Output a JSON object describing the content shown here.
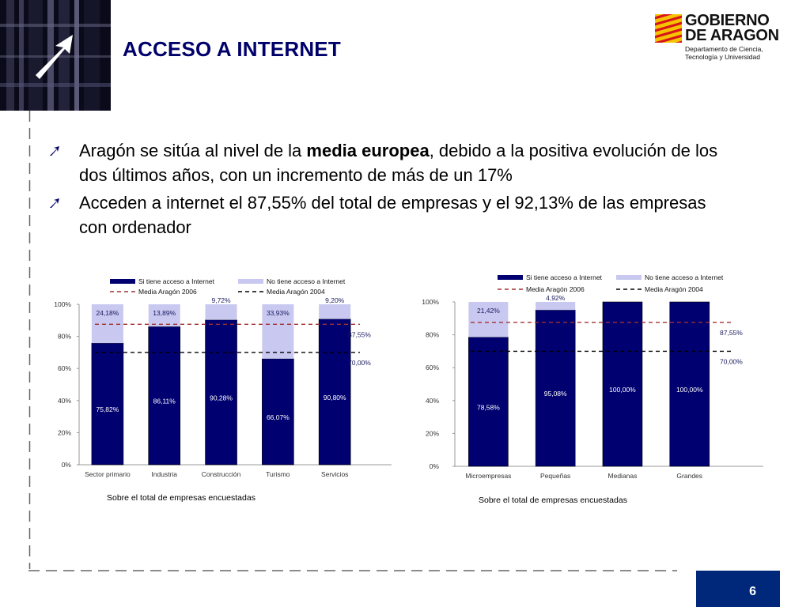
{
  "slide": {
    "title": "ACCESO A INTERNET",
    "page_number": "6",
    "bullets": [
      {
        "before": "Aragón se sitúa al nivel de la ",
        "bold": "media europea",
        "after": ", debido a la positiva evolución de los dos últimos años, con un incremento de más de un 17%"
      },
      {
        "before": "Acceden a internet el 87,55% del total de empresas y el 92,13% de las empresas con ordenador",
        "bold": "",
        "after": ""
      }
    ]
  },
  "logo": {
    "line1": "GOBIERNO",
    "line2": "DE ARAGON",
    "sub1": "Departamento de Ciencia,",
    "sub2": "Tecnología y Universidad"
  },
  "colors": {
    "title": "#00006b",
    "bar_yes": "#000070",
    "bar_no": "#c8c8f0",
    "avg_2006": "#a03030",
    "avg_2004": "#000000",
    "page_box": "#00287a"
  },
  "chart_data": [
    {
      "type": "bar",
      "stacked": true,
      "categories": [
        "Sector primario",
        "Industria",
        "Construcción",
        "Turismo",
        "Servicios"
      ],
      "series": [
        {
          "name": "Si tiene acceso a Internet",
          "values": [
            75.82,
            86.11,
            90.28,
            66.07,
            90.8
          ],
          "labels": [
            "75,82%",
            "86,11%",
            "90,28%",
            "66,07%",
            "90,80%"
          ]
        },
        {
          "name": "No tiene acceso a Internet",
          "values": [
            24.18,
            13.89,
            9.72,
            33.93,
            9.2
          ],
          "labels": [
            "24,18%",
            "13,89%",
            "9,72%",
            "33,93%",
            "9,20%"
          ]
        }
      ],
      "reference_lines": [
        {
          "name": "Media Aragón 2006",
          "value": 87.55,
          "label": "87,55%"
        },
        {
          "name": "Media Aragón 2004",
          "value": 70.0,
          "label": "70,00%"
        }
      ],
      "y_ticks": [
        "0%",
        "20%",
        "40%",
        "60%",
        "80%",
        "100%"
      ],
      "ylim": [
        0,
        100
      ],
      "caption": "Sobre el total de empresas encuestadas",
      "legend": "top"
    },
    {
      "type": "bar",
      "stacked": true,
      "categories": [
        "Microempresas",
        "Pequeñas",
        "Medianas",
        "Grandes"
      ],
      "series": [
        {
          "name": "Si tiene acceso a Internet",
          "values": [
            78.58,
            95.08,
            100.0,
            100.0
          ],
          "labels": [
            "78,58%",
            "95,08%",
            "100,00%",
            "100,00%"
          ]
        },
        {
          "name": "No tiene acceso a Internet",
          "values": [
            21.42,
            4.92,
            0,
            0
          ],
          "labels": [
            "21,42%",
            "4,92%",
            "",
            ""
          ]
        }
      ],
      "reference_lines": [
        {
          "name": "Media Aragón 2006",
          "value": 87.55,
          "label": "87,55%"
        },
        {
          "name": "Media Aragón 2004",
          "value": 70.0,
          "label": "70,00%"
        }
      ],
      "y_ticks": [
        "0%",
        "20%",
        "40%",
        "60%",
        "80%",
        "100%"
      ],
      "ylim": [
        0,
        100
      ],
      "caption": "Sobre el total de empresas encuestadas",
      "legend": "top"
    }
  ]
}
